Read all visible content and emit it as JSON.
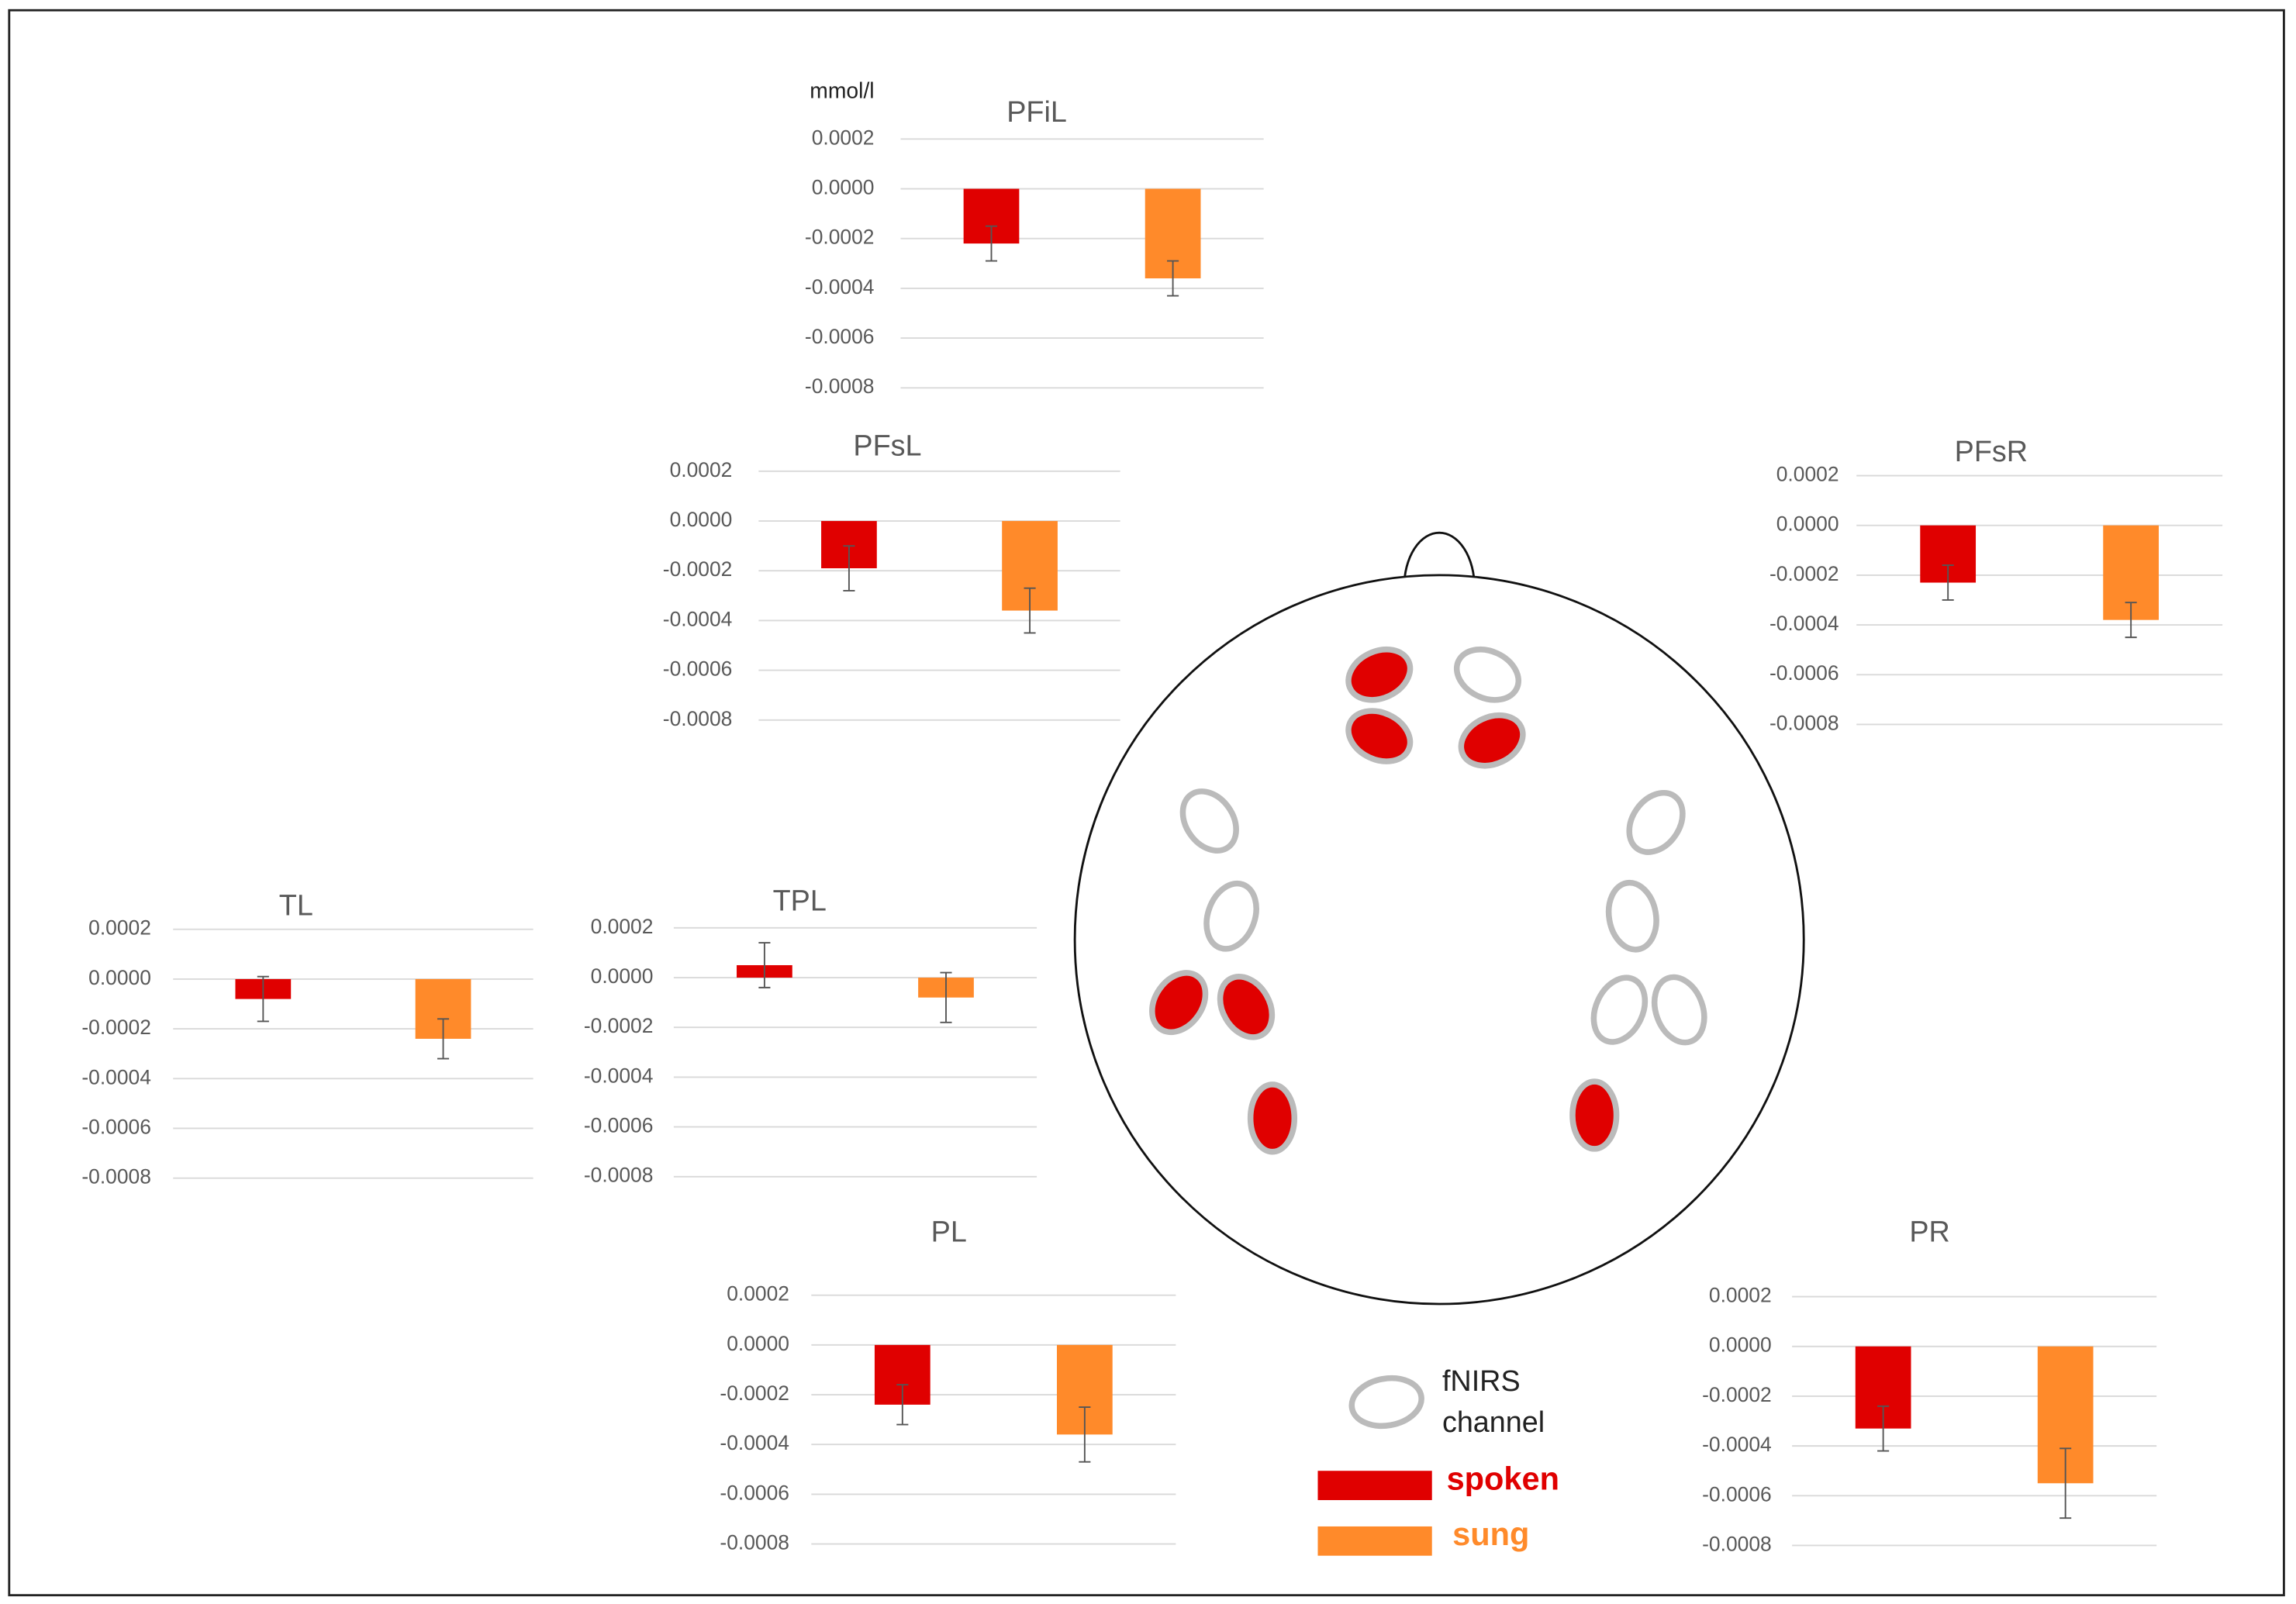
{
  "chart_data": [
    {
      "type": "bar",
      "title": "PFiL",
      "ylabel": "mmol/l",
      "series": [
        {
          "color": "#e00000",
          "values": [
            -0.00022
          ],
          "errors": [
            7e-05
          ]
        },
        {
          "color": "#ff8a2a",
          "values": [
            -0.00036
          ],
          "errors": [
            7e-05
          ]
        }
      ],
      "ylim": [
        -0.0008,
        0.0002
      ],
      "yticks": [
        0.0002,
        {
          "value": 0,
          "label": "0.0000"
        },
        -0.0002,
        -0.0004,
        -0.0006,
        -0.0008
      ],
      "grid": true
    },
    {
      "type": "bar",
      "title": "PFsL",
      "series": [
        {
          "color": "#e00000",
          "values": [
            -0.00019
          ],
          "errors": [
            9e-05
          ]
        },
        {
          "color": "#ff8a2a",
          "values": [
            -0.00036
          ],
          "errors": [
            9e-05
          ]
        }
      ],
      "ylim": [
        -0.0008,
        0.0002
      ],
      "yticks": [
        0.0002,
        {
          "value": 0,
          "label": "0.0000"
        },
        -0.0002,
        -0.0004,
        -0.0006,
        -0.0008
      ],
      "grid": true
    },
    {
      "type": "bar",
      "title": "PFsR",
      "series": [
        {
          "color": "#e00000",
          "values": [
            -0.00023
          ],
          "errors": [
            7e-05
          ]
        },
        {
          "color": "#ff8a2a",
          "values": [
            -0.00038
          ],
          "errors": [
            7e-05
          ]
        }
      ],
      "ylim": [
        -0.0008,
        0.0002
      ],
      "yticks": [
        0.0002,
        {
          "value": 0,
          "label": "0.0000"
        },
        -0.0002,
        -0.0004,
        -0.0006,
        -0.0008
      ],
      "grid": true
    },
    {
      "type": "bar",
      "title": "TL",
      "series": [
        {
          "color": "#e00000",
          "values": [
            -8e-05
          ],
          "errors": [
            9e-05
          ]
        },
        {
          "color": "#ff8a2a",
          "values": [
            -0.00024
          ],
          "errors": [
            8e-05
          ]
        }
      ],
      "ylim": [
        -0.0008,
        0.0002
      ],
      "yticks": [
        0.0002,
        {
          "value": 0,
          "label": "0.0000"
        },
        -0.0002,
        -0.0004,
        -0.0006,
        -0.0008
      ],
      "grid": true
    },
    {
      "type": "bar",
      "title": "TPL",
      "series": [
        {
          "color": "#e00000",
          "values": [
            5e-05
          ],
          "errors": [
            9e-05
          ]
        },
        {
          "color": "#ff8a2a",
          "values": [
            -8e-05
          ],
          "errors": [
            0.0001
          ]
        }
      ],
      "ylim": [
        -0.0008,
        0.0002
      ],
      "yticks": [
        0.0002,
        {
          "value": 0,
          "label": "0.0000"
        },
        -0.0002,
        -0.0004,
        -0.0006,
        -0.0008
      ],
      "grid": true
    },
    {
      "type": "bar",
      "title": "PL",
      "series": [
        {
          "color": "#e00000",
          "values": [
            -0.00024
          ],
          "errors": [
            8e-05
          ]
        },
        {
          "color": "#ff8a2a",
          "values": [
            -0.00036
          ],
          "errors": [
            0.00011
          ]
        }
      ],
      "ylim": [
        -0.0008,
        0.0002
      ],
      "yticks": [
        0.0002,
        {
          "value": 0,
          "label": "0.0000"
        },
        -0.0002,
        -0.0004,
        -0.0006,
        -0.0008
      ],
      "grid": true
    },
    {
      "type": "bar",
      "title": "PR",
      "series": [
        {
          "color": "#e00000",
          "values": [
            -0.00033
          ],
          "errors": [
            9e-05
          ]
        },
        {
          "color": "#ff8a2a",
          "values": [
            -0.00055
          ],
          "errors": [
            0.00014
          ]
        }
      ],
      "ylim": [
        -0.0008,
        0.0002
      ],
      "yticks": [
        0.0002,
        {
          "value": 0,
          "label": "0.0000"
        },
        -0.0002,
        -0.0004,
        -0.0006,
        -0.0008
      ],
      "grid": true
    }
  ],
  "legend": {
    "channel_label": [
      "fNIRS",
      "channel"
    ],
    "items": [
      {
        "name": "spoken",
        "color": "#e00000"
      },
      {
        "name": "sung",
        "color": "#ff8a2a"
      }
    ]
  }
}
